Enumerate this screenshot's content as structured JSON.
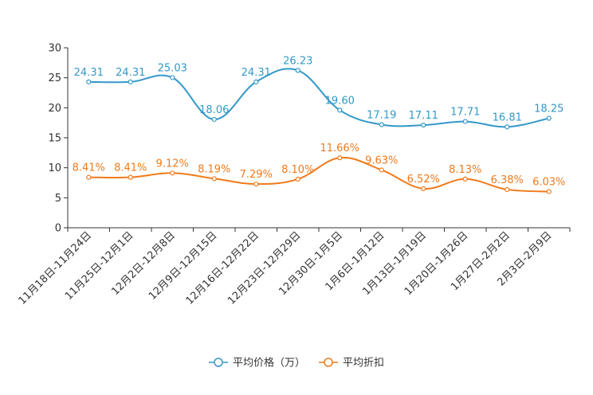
{
  "chart_data": {
    "type": "line",
    "title": "",
    "xlabel": "",
    "ylabel": "",
    "ylim": [
      0,
      30
    ],
    "yticks": [
      0,
      5,
      10,
      15,
      20,
      25,
      30
    ],
    "grid": false,
    "legend_position": "bottom-center",
    "categories": [
      "11月18日-11月24日",
      "11月25日-12月1日",
      "12月2日-12月8日",
      "12月9日-12月15日",
      "12月16日-12月22日",
      "12月23日-12月29日",
      "12月30日-1月5日",
      "1月6日-1月12日",
      "1月13日-1月19日",
      "1月20日-1月26日",
      "1月27日-2月2日",
      "2月3日-2月9日"
    ],
    "series": [
      {
        "name": "平均价格（万）",
        "color": "#3398c8",
        "values": [
          24.31,
          24.31,
          25.03,
          18.06,
          24.31,
          26.23,
          19.6,
          17.19,
          17.11,
          17.71,
          16.81,
          18.25
        ],
        "labels": [
          "24.31",
          "24.31",
          "25.03",
          "18.06",
          "24.31",
          "26.23",
          "19.60",
          "17.19",
          "17.11",
          "17.71",
          "16.81",
          "18.25"
        ]
      },
      {
        "name": "平均折扣",
        "color": "#f07a1a",
        "values": [
          8.41,
          8.41,
          9.12,
          8.19,
          7.29,
          8.1,
          11.66,
          9.63,
          6.52,
          8.13,
          6.38,
          6.03
        ],
        "labels": [
          "8.41%",
          "8.41%",
          "9.12%",
          "8.19%",
          "7.29%",
          "8.10%",
          "11.66%",
          "9.63%",
          "6.52%",
          "8.13%",
          "6.38%",
          "6.03%"
        ]
      }
    ]
  }
}
